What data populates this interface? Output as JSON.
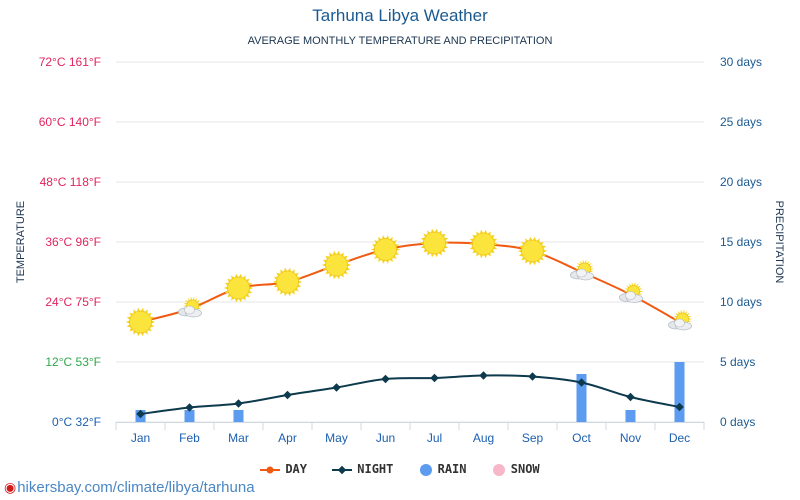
{
  "title": "Tarhuna Libya Weather",
  "subtitle": "AVERAGE MONTHLY TEMPERATURE AND PRECIPITATION",
  "source": "hikersbay.com/climate/libya/tarhuna",
  "colors": {
    "day": "#f05a12",
    "night": "#0d3a4d",
    "rain": "#5b9bf0",
    "snow": "#f7b7c8",
    "axis_left": "#e0245e",
    "axis_left_low": "#2ea84a",
    "axis_left_zero": "#1b5fb0",
    "axis_right": "#1b5a91",
    "month": "#1b5fb0"
  },
  "chart_data": {
    "type": "line",
    "categories": [
      "Jan",
      "Feb",
      "Mar",
      "Apr",
      "May",
      "Jun",
      "Jul",
      "Aug",
      "Sep",
      "Oct",
      "Nov",
      "Dec"
    ],
    "series": [
      {
        "name": "DAY",
        "kind": "line",
        "axis": "left",
        "values": [
          20,
          22.6,
          26.8,
          28,
          31.4,
          34.5,
          35.8,
          35.6,
          34.2,
          30,
          25.5,
          20
        ]
      },
      {
        "name": "NIGHT",
        "kind": "line",
        "axis": "left",
        "values": [
          1.6,
          2.9,
          3.7,
          5.4,
          6.9,
          8.6,
          8.8,
          9.3,
          9.1,
          7.9,
          5.0,
          3.0
        ]
      },
      {
        "name": "RAIN",
        "kind": "bar",
        "axis": "right",
        "values": [
          1,
          1,
          1,
          0,
          0,
          0,
          0,
          0,
          0,
          4,
          1,
          5
        ]
      },
      {
        "name": "SNOW",
        "kind": "bar",
        "axis": "right",
        "values": [
          0,
          0,
          0,
          0,
          0,
          0,
          0,
          0,
          0,
          0,
          0,
          0
        ]
      }
    ],
    "weather_icons": [
      "sun",
      "partly-cloudy",
      "sun",
      "sun",
      "sun",
      "sun",
      "sun",
      "sun",
      "sun",
      "partly-cloudy",
      "partly-cloudy",
      "partly-cloudy"
    ],
    "left_axis": {
      "label": "TEMPERATURE",
      "range": [
        0,
        72
      ],
      "ticks": [
        {
          "value": 0,
          "label": "0°C 32°F"
        },
        {
          "value": 12,
          "label": "12°C 53°F"
        },
        {
          "value": 24,
          "label": "24°C 75°F"
        },
        {
          "value": 36,
          "label": "36°C 96°F"
        },
        {
          "value": 48,
          "label": "48°C 118°F"
        },
        {
          "value": 60,
          "label": "60°C 140°F"
        },
        {
          "value": 72,
          "label": "72°C 161°F"
        }
      ]
    },
    "right_axis": {
      "label": "PRECIPITATION",
      "range": [
        0,
        30
      ],
      "ticks": [
        {
          "value": 0,
          "label": "0 days"
        },
        {
          "value": 5,
          "label": "5 days"
        },
        {
          "value": 10,
          "label": "10 days"
        },
        {
          "value": 15,
          "label": "15 days"
        },
        {
          "value": 20,
          "label": "20 days"
        },
        {
          "value": 25,
          "label": "25 days"
        },
        {
          "value": 30,
          "label": "30 days"
        }
      ]
    },
    "grid": true,
    "legend_position": "bottom-center",
    "legend": [
      "DAY",
      "NIGHT",
      "RAIN",
      "SNOW"
    ]
  }
}
